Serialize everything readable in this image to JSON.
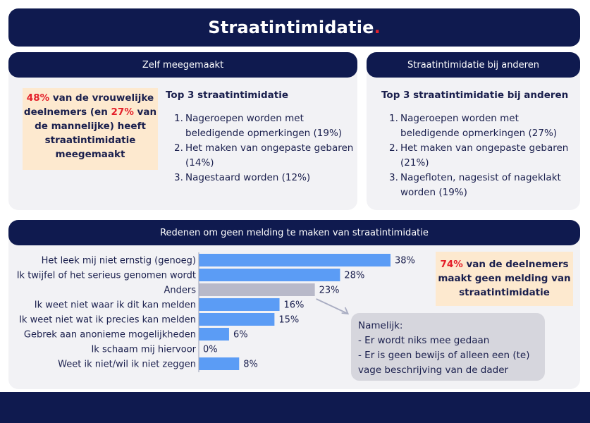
{
  "title": "Straatintimidatie",
  "title_dot": ".",
  "left_panel": {
    "header": "Zelf meegemaakt",
    "callout": {
      "pct_women": "48%",
      "text_a": " van de vrouwelijke deelnemers (en ",
      "pct_men": "27%",
      "text_b": " van de mannelijke) heeft straatintimidatie meegemaakt"
    },
    "list_title": "Top 3 straatintimidatie",
    "items": [
      {
        "num": "1.",
        "text": "Nageroepen worden met beledigende opmerkingen (19%)"
      },
      {
        "num": "2.",
        "text": "Het maken van ongepaste gebaren (14%)"
      },
      {
        "num": "3.",
        "text": "Nagestaard worden (12%)"
      }
    ]
  },
  "right_panel": {
    "header": "Straatintimidatie bij anderen",
    "list_title": "Top 3 straatintimidatie bij anderen",
    "items": [
      {
        "num": "1.",
        "text": "Nageroepen worden met beledigende opmerkingen (27%)"
      },
      {
        "num": "2.",
        "text": "Het maken van ongepaste gebaren (21%)"
      },
      {
        "num": "3.",
        "text": "Nagefloten, nagesist of nageklakt worden (19%)"
      }
    ]
  },
  "bottom_panel": {
    "header": "Redenen om geen melding te maken van straatintimidatie",
    "callout": {
      "pct": "74%",
      "text": " van de deelnemers maakt geen melding van straatintimidatie"
    },
    "note": {
      "title": "Namelijk:",
      "lines": [
        "- Er wordt niks mee gedaan",
        "- Er is geen bewijs of alleen een (te) vage beschrijving van de dader"
      ]
    }
  },
  "chart_data": {
    "type": "bar",
    "orientation": "horizontal",
    "categories": [
      "Het leek mij niet ernstig (genoeg)",
      "Ik twijfel of het serieus genomen wordt",
      "Anders",
      "Ik weet niet waar ik dit kan melden",
      "Ik weet niet wat ik precies kan melden",
      "Gebrek aan anonieme mogelijkheden",
      "Ik schaam mij hiervoor",
      "Weet ik niet/wil ik niet zeggen"
    ],
    "values": [
      38,
      28,
      23,
      16,
      15,
      6,
      0,
      8
    ],
    "value_labels": [
      "38%",
      "28%",
      "23%",
      "16%",
      "15%",
      "6%",
      "0%",
      "8%"
    ],
    "highlight_index": 2,
    "colors": {
      "bar": "#5b9cf5",
      "highlight": "#b8b9c9",
      "arrow": "#a9adc2"
    },
    "xlim": [
      0,
      38
    ]
  },
  "colors": {
    "navy": "#0f1a4f",
    "accent_red": "#e4202a",
    "callout_bg": "#fde9cf",
    "panel_bg": "#f2f2f5"
  }
}
